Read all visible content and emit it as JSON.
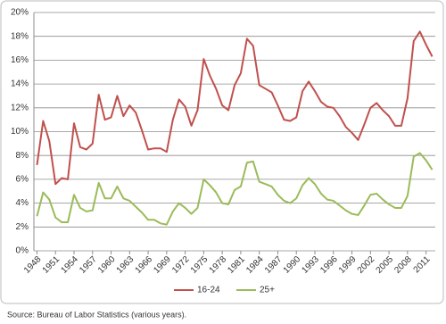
{
  "chart_data": {
    "type": "line",
    "x": [
      1948,
      1949,
      1950,
      1951,
      1952,
      1953,
      1954,
      1955,
      1956,
      1957,
      1958,
      1959,
      1960,
      1961,
      1962,
      1963,
      1964,
      1965,
      1966,
      1967,
      1968,
      1969,
      1970,
      1971,
      1972,
      1973,
      1974,
      1975,
      1976,
      1977,
      1978,
      1979,
      1980,
      1981,
      1982,
      1983,
      1984,
      1985,
      1986,
      1987,
      1988,
      1989,
      1990,
      1991,
      1992,
      1993,
      1994,
      1995,
      1996,
      1997,
      1998,
      1999,
      2000,
      2001,
      2002,
      2003,
      2004,
      2005,
      2006,
      2007,
      2008,
      2009,
      2010,
      2011,
      2012
    ],
    "series": [
      {
        "name": "16-24",
        "color": "#c0504d",
        "values": [
          7.2,
          10.9,
          9.2,
          5.6,
          6.1,
          6.0,
          10.7,
          8.7,
          8.5,
          9.0,
          13.1,
          11.0,
          11.2,
          13.0,
          11.3,
          12.2,
          11.6,
          10.1,
          8.5,
          8.6,
          8.6,
          8.3,
          11.0,
          12.7,
          12.1,
          10.5,
          11.8,
          16.1,
          14.7,
          13.6,
          12.2,
          11.8,
          13.9,
          14.9,
          17.8,
          17.2,
          13.9,
          13.6,
          13.3,
          12.2,
          11.0,
          10.9,
          11.2,
          13.4,
          14.2,
          13.4,
          12.5,
          12.1,
          12.0,
          11.3,
          10.4,
          9.9,
          9.3,
          10.6,
          12.0,
          12.4,
          11.8,
          11.3,
          10.5,
          10.5,
          12.8,
          17.6,
          18.4,
          17.3,
          16.3
        ]
      },
      {
        "name": "25+",
        "color": "#9bbb59",
        "values": [
          2.9,
          4.9,
          4.3,
          2.8,
          2.4,
          2.4,
          4.7,
          3.6,
          3.3,
          3.4,
          5.7,
          4.4,
          4.4,
          5.4,
          4.4,
          4.2,
          3.7,
          3.2,
          2.6,
          2.6,
          2.3,
          2.2,
          3.3,
          4.0,
          3.6,
          3.1,
          3.6,
          6.0,
          5.5,
          4.9,
          4.0,
          3.9,
          5.1,
          5.4,
          7.4,
          7.5,
          5.8,
          5.6,
          5.4,
          4.7,
          4.2,
          4.0,
          4.4,
          5.5,
          6.1,
          5.6,
          4.8,
          4.3,
          4.2,
          3.8,
          3.4,
          3.1,
          3.0,
          3.8,
          4.7,
          4.8,
          4.3,
          3.9,
          3.6,
          3.6,
          4.6,
          7.9,
          8.2,
          7.6,
          6.8
        ]
      }
    ],
    "xlim": [
      1947.5,
      2012.5
    ],
    "xticks": [
      1948,
      1951,
      1954,
      1957,
      1960,
      1963,
      1966,
      1969,
      1972,
      1975,
      1978,
      1981,
      1984,
      1987,
      1990,
      1993,
      1996,
      1999,
      2002,
      2005,
      2008,
      2011
    ],
    "ylim": [
      0,
      20
    ],
    "yticks": [
      {
        "value": 0,
        "label": "0%"
      },
      {
        "value": 2,
        "label": "2%"
      },
      {
        "value": 4,
        "label": "4%"
      },
      {
        "value": 6,
        "label": "6%"
      },
      {
        "value": 8,
        "label": "8%"
      },
      {
        "value": 10,
        "label": "10%"
      },
      {
        "value": 12,
        "label": "12%"
      },
      {
        "value": 14,
        "label": "14%"
      },
      {
        "value": 16,
        "label": "16%"
      },
      {
        "value": 18,
        "label": "18%"
      },
      {
        "value": 20,
        "label": "20%"
      }
    ],
    "grid": true,
    "legend": "bottom",
    "source": "Source:  Bureau of Labor Statistics (various years)."
  }
}
